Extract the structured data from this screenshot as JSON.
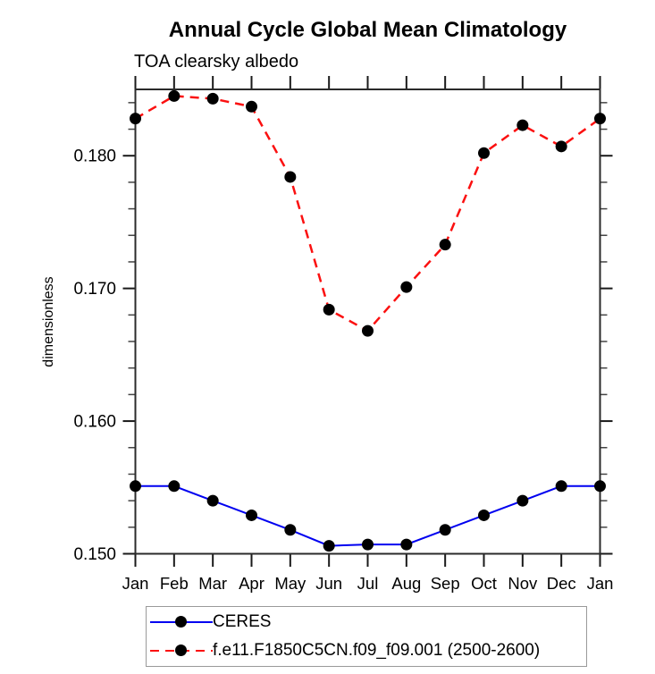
{
  "title": "Annual Cycle Global Mean Climatology",
  "subtitle": "TOA clearsky albedo",
  "chart_data": {
    "type": "line",
    "title": "Annual Cycle Global Mean Climatology",
    "subtitle": "TOA clearsky albedo",
    "xlabel": "",
    "ylabel": "dimensionless",
    "categories": [
      "Jan",
      "Feb",
      "Mar",
      "Apr",
      "May",
      "Jun",
      "Jul",
      "Aug",
      "Sep",
      "Oct",
      "Nov",
      "Dec",
      "Jan"
    ],
    "series": [
      {
        "name": "CERES",
        "color": "#0000f0",
        "line_style": "solid",
        "line_width": 2,
        "marker": "circle",
        "marker_color": "#000000",
        "values": [
          0.1551,
          0.1551,
          0.154,
          0.1529,
          0.1518,
          0.1506,
          0.1507,
          0.1507,
          0.1518,
          0.1529,
          0.154,
          0.1551,
          0.1551
        ]
      },
      {
        "name": "f.e11.F1850C5CN.f09_f09.001 (2500-2600)",
        "color": "#fb1010",
        "line_style": "dashed",
        "line_width": 2.5,
        "marker": "circle",
        "marker_color": "#000000",
        "values": [
          0.1828,
          0.1845,
          0.1843,
          0.1837,
          0.1784,
          0.1684,
          0.1668,
          0.1701,
          0.1733,
          0.1802,
          0.1823,
          0.1807,
          0.1828
        ]
      }
    ],
    "ylim": [
      0.15,
      0.185
    ],
    "y_major_ticks": [
      0.15,
      0.16,
      0.17,
      0.18
    ],
    "y_major_tick_labels": [
      "0.150",
      "0.160",
      "0.170",
      "0.180"
    ],
    "y_minor_tick_step": 0.002,
    "grid": false,
    "legend_position": "bottom-left",
    "frame_color": "#2b2b2b",
    "tick_color": "#1a1a1a"
  }
}
